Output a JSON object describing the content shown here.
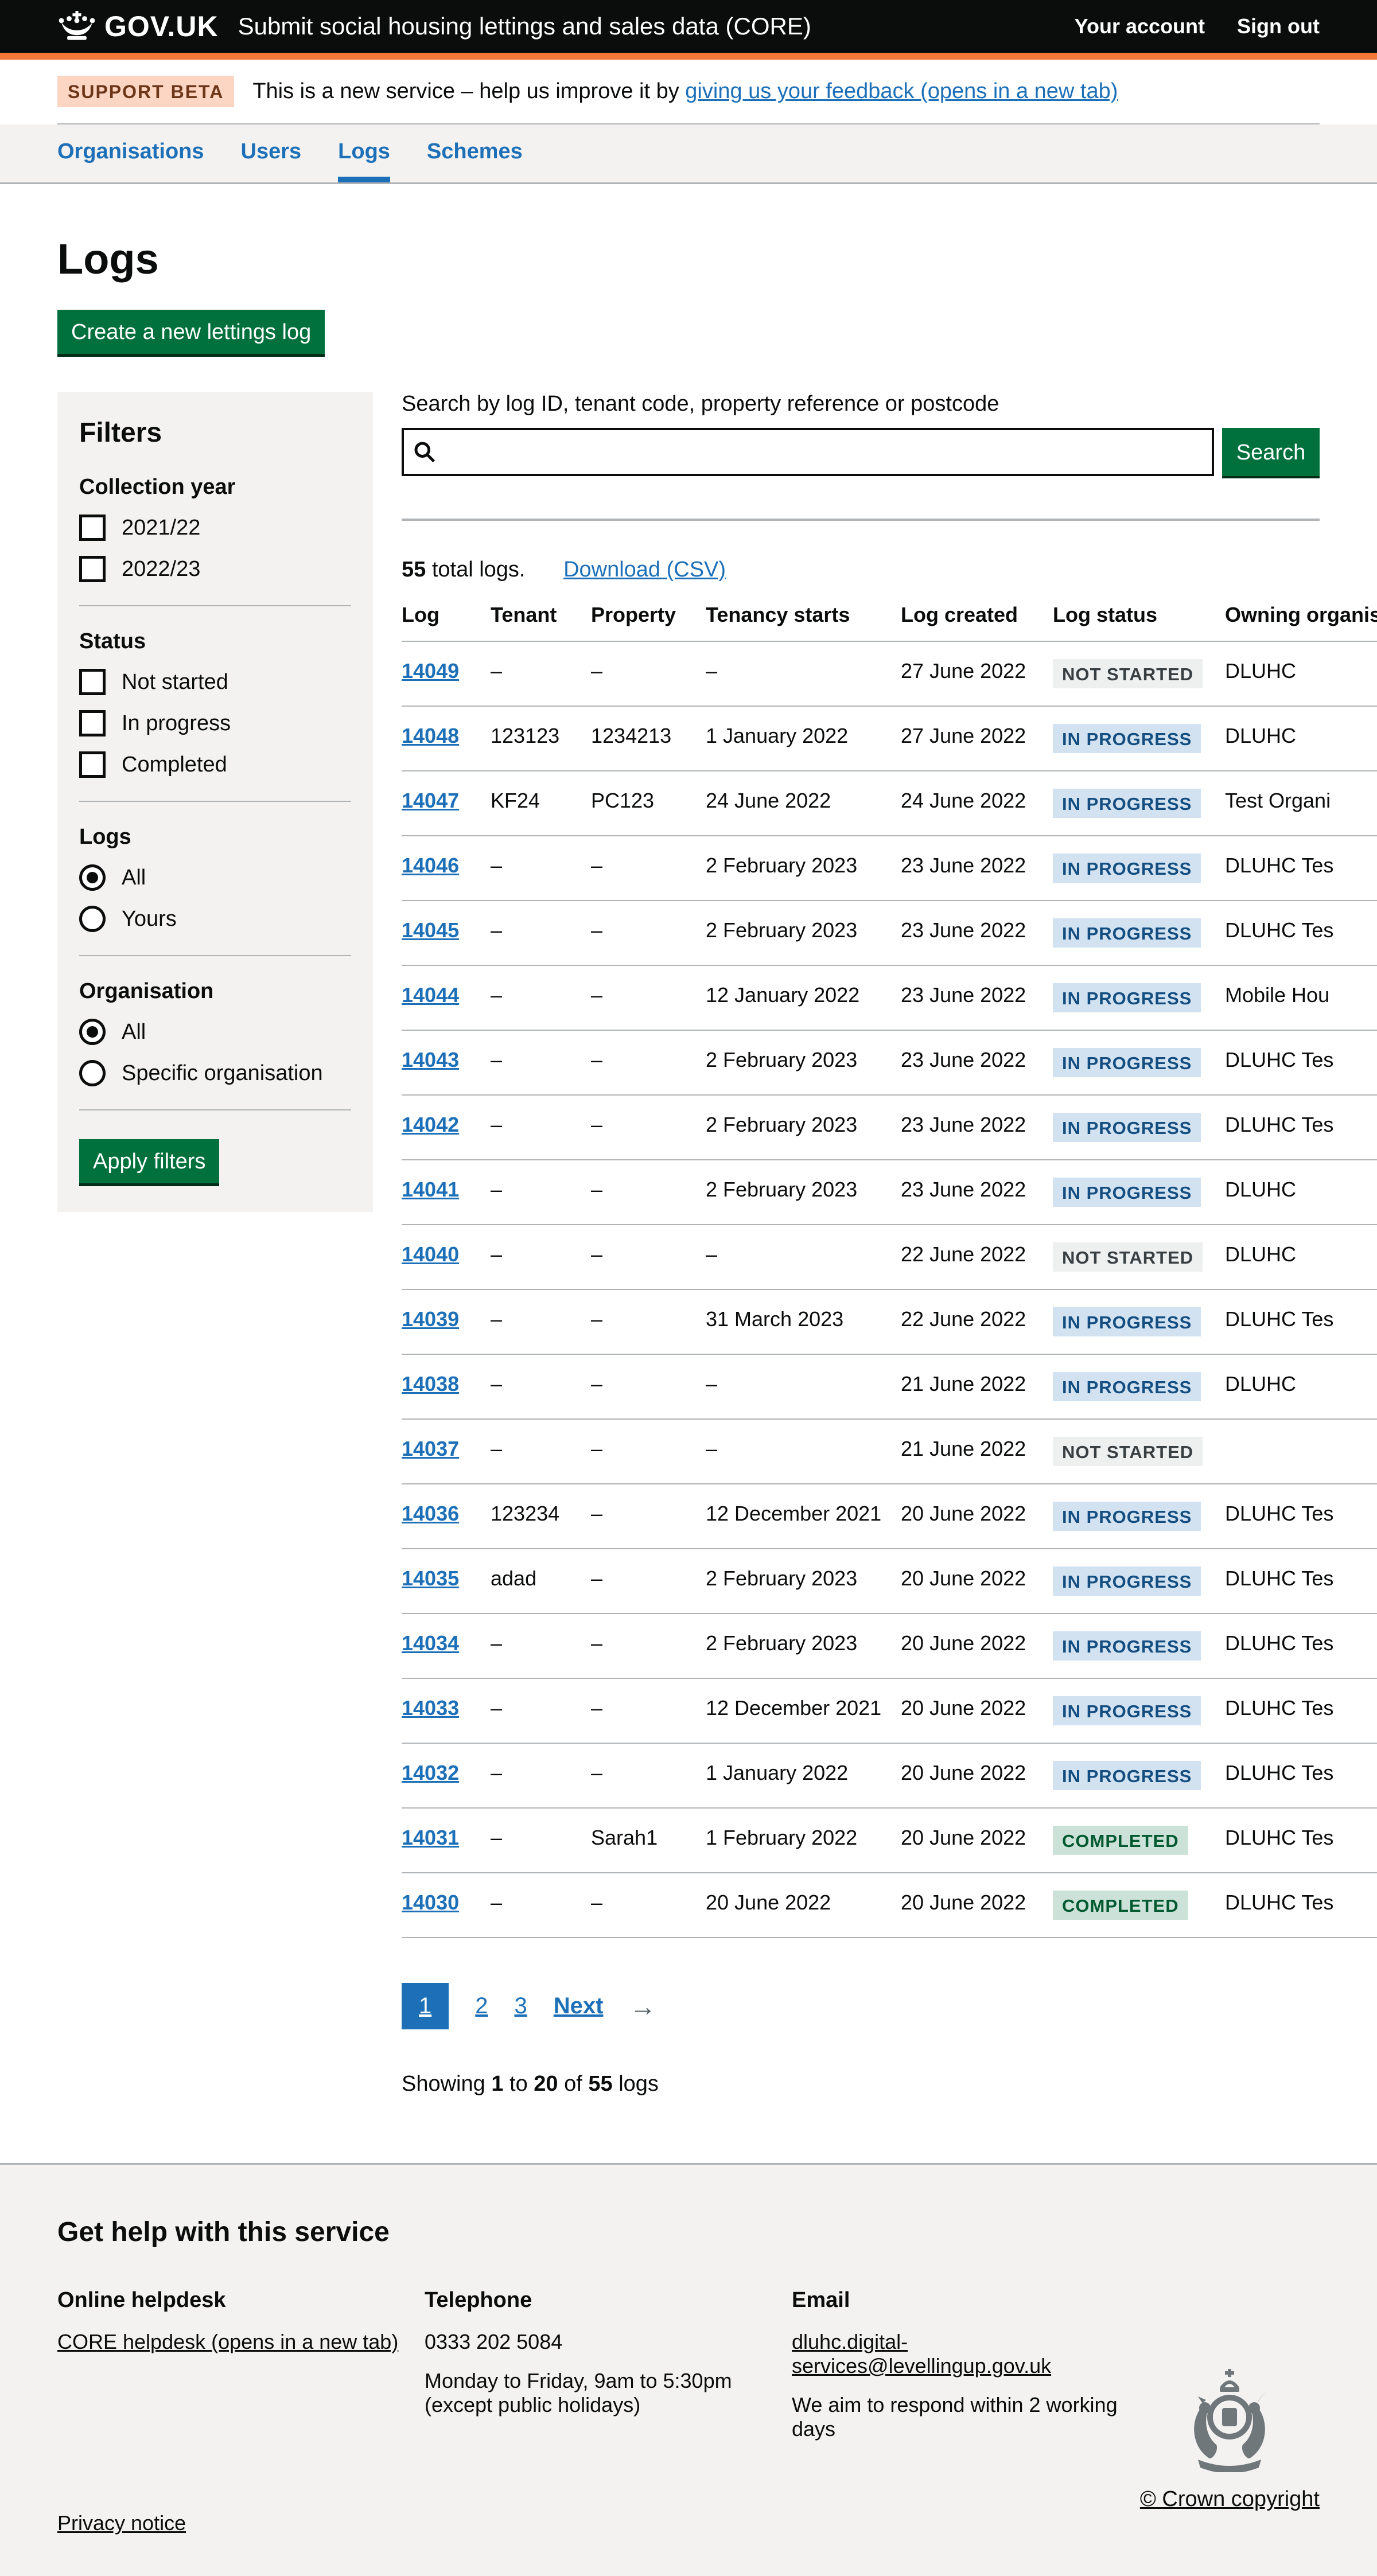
{
  "header": {
    "logo": "GOV.UK",
    "service_name": "Submit social housing lettings and sales data (CORE)",
    "account_link": "Your account",
    "signout_link": "Sign out"
  },
  "beta_banner": {
    "tag": "SUPPORT BETA",
    "text_before": "This is a new service – help us improve it by ",
    "link": "giving us your feedback (opens in a new tab)"
  },
  "nav": {
    "items": [
      {
        "label": "Organisations",
        "active": false
      },
      {
        "label": "Users",
        "active": false
      },
      {
        "label": "Logs",
        "active": true
      },
      {
        "label": "Schemes",
        "active": false
      }
    ]
  },
  "page": {
    "title": "Logs",
    "create_button": "Create a new lettings log"
  },
  "filters": {
    "title": "Filters",
    "collection_year": {
      "legend": "Collection year",
      "options": [
        {
          "label": "2021/22",
          "checked": false
        },
        {
          "label": "2022/23",
          "checked": false
        }
      ]
    },
    "status": {
      "legend": "Status",
      "options": [
        {
          "label": "Not started",
          "checked": false
        },
        {
          "label": "In progress",
          "checked": false
        },
        {
          "label": "Completed",
          "checked": false
        }
      ]
    },
    "logs": {
      "legend": "Logs",
      "options": [
        {
          "label": "All",
          "selected": true
        },
        {
          "label": "Yours",
          "selected": false
        }
      ]
    },
    "organisation": {
      "legend": "Organisation",
      "options": [
        {
          "label": "All",
          "selected": true
        },
        {
          "label": "Specific organisation",
          "selected": false
        }
      ]
    },
    "apply_button": "Apply filters"
  },
  "search": {
    "label": "Search by log ID, tenant code, property reference or postcode",
    "value": "",
    "button": "Search"
  },
  "results": {
    "count": "55",
    "count_suffix": " total logs.",
    "download_link": "Download (CSV)"
  },
  "table": {
    "headers": [
      "Log",
      "Tenant",
      "Property",
      "Tenancy starts",
      "Log created",
      "Log status",
      "Owning organisation"
    ],
    "rows": [
      {
        "id": "14049",
        "tenant": "–",
        "property": "–",
        "tenancy_starts": "–",
        "log_created": "27 June 2022",
        "status": "Not started",
        "status_type": "grey",
        "owning": "DLUHC"
      },
      {
        "id": "14048",
        "tenant": "123123",
        "property": "1234213",
        "tenancy_starts": "1 January 2022",
        "log_created": "27 June 2022",
        "status": "In progress",
        "status_type": "blue",
        "owning": "DLUHC"
      },
      {
        "id": "14047",
        "tenant": "KF24",
        "property": "PC123",
        "tenancy_starts": "24 June 2022",
        "log_created": "24 June 2022",
        "status": "In progress",
        "status_type": "blue",
        "owning": "Test Organi"
      },
      {
        "id": "14046",
        "tenant": "–",
        "property": "–",
        "tenancy_starts": "2 February 2023",
        "log_created": "23 June 2022",
        "status": "In progress",
        "status_type": "blue",
        "owning": "DLUHC Tes"
      },
      {
        "id": "14045",
        "tenant": "–",
        "property": "–",
        "tenancy_starts": "2 February 2023",
        "log_created": "23 June 2022",
        "status": "In progress",
        "status_type": "blue",
        "owning": "DLUHC Tes"
      },
      {
        "id": "14044",
        "tenant": "–",
        "property": "–",
        "tenancy_starts": "12 January 2022",
        "log_created": "23 June 2022",
        "status": "In progress",
        "status_type": "blue",
        "owning": "Mobile Hou"
      },
      {
        "id": "14043",
        "tenant": "–",
        "property": "–",
        "tenancy_starts": "2 February 2023",
        "log_created": "23 June 2022",
        "status": "In progress",
        "status_type": "blue",
        "owning": "DLUHC Tes"
      },
      {
        "id": "14042",
        "tenant": "–",
        "property": "–",
        "tenancy_starts": "2 February 2023",
        "log_created": "23 June 2022",
        "status": "In progress",
        "status_type": "blue",
        "owning": "DLUHC Tes"
      },
      {
        "id": "14041",
        "tenant": "–",
        "property": "–",
        "tenancy_starts": "2 February 2023",
        "log_created": "23 June 2022",
        "status": "In progress",
        "status_type": "blue",
        "owning": "DLUHC"
      },
      {
        "id": "14040",
        "tenant": "–",
        "property": "–",
        "tenancy_starts": "–",
        "log_created": "22 June 2022",
        "status": "Not started",
        "status_type": "grey",
        "owning": "DLUHC"
      },
      {
        "id": "14039",
        "tenant": "–",
        "property": "–",
        "tenancy_starts": "31 March 2023",
        "log_created": "22 June 2022",
        "status": "In progress",
        "status_type": "blue",
        "owning": "DLUHC Tes"
      },
      {
        "id": "14038",
        "tenant": "–",
        "property": "–",
        "tenancy_starts": "–",
        "log_created": "21 June 2022",
        "status": "In progress",
        "status_type": "blue",
        "owning": "DLUHC"
      },
      {
        "id": "14037",
        "tenant": "–",
        "property": "–",
        "tenancy_starts": "–",
        "log_created": "21 June 2022",
        "status": "Not started",
        "status_type": "grey",
        "owning": ""
      },
      {
        "id": "14036",
        "tenant": "123234",
        "property": "–",
        "tenancy_starts": "12 December 2021",
        "log_created": "20 June 2022",
        "status": "In progress",
        "status_type": "blue",
        "owning": "DLUHC Tes"
      },
      {
        "id": "14035",
        "tenant": "adad",
        "property": "–",
        "tenancy_starts": "2 February 2023",
        "log_created": "20 June 2022",
        "status": "In progress",
        "status_type": "blue",
        "owning": "DLUHC Tes"
      },
      {
        "id": "14034",
        "tenant": "–",
        "property": "–",
        "tenancy_starts": "2 February 2023",
        "log_created": "20 June 2022",
        "status": "In progress",
        "status_type": "blue",
        "owning": "DLUHC Tes"
      },
      {
        "id": "14033",
        "tenant": "–",
        "property": "–",
        "tenancy_starts": "12 December 2021",
        "log_created": "20 June 2022",
        "status": "In progress",
        "status_type": "blue",
        "owning": "DLUHC Tes"
      },
      {
        "id": "14032",
        "tenant": "–",
        "property": "–",
        "tenancy_starts": "1 January 2022",
        "log_created": "20 June 2022",
        "status": "In progress",
        "status_type": "blue",
        "owning": "DLUHC Tes"
      },
      {
        "id": "14031",
        "tenant": "–",
        "property": "Sarah1",
        "tenancy_starts": "1 February 2022",
        "log_created": "20 June 2022",
        "status": "Completed",
        "status_type": "green",
        "owning": "DLUHC Tes"
      },
      {
        "id": "14030",
        "tenant": "–",
        "property": "–",
        "tenancy_starts": "20 June 2022",
        "log_created": "20 June 2022",
        "status": "Completed",
        "status_type": "green",
        "owning": "DLUHC Tes"
      }
    ]
  },
  "pagination": {
    "current": "1",
    "page2": "2",
    "page3": "3",
    "next": "Next",
    "arrow": "→"
  },
  "showing": {
    "prefix": "Showing ",
    "from": "1",
    "mid1": " to ",
    "to": "20",
    "mid2": " of ",
    "of": "55",
    "suffix": " logs"
  },
  "footer": {
    "heading": "Get help with this service",
    "online_helpdesk": {
      "heading": "Online helpdesk",
      "link": "CORE helpdesk (opens in a new tab)"
    },
    "telephone": {
      "heading": "Telephone",
      "number": "0333 202 5084",
      "hours": "Monday to Friday, 9am to 5:30pm",
      "note": "(except public holidays)"
    },
    "email": {
      "heading": "Email",
      "link": "dluhc.digital-services@levellingup.gov.uk",
      "note": "We aim to respond within 2 working days"
    },
    "privacy_link": "Privacy notice",
    "copyright": "© Crown copyright"
  },
  "colors": {
    "header_bg": "#0b0c0c",
    "header_accent": "#f47738",
    "link_blue": "#1d70b8",
    "button_green": "#00703c",
    "panel_grey": "#f3f2f1",
    "border_grey": "#b1b4b6",
    "beta_tag_bg": "#fcd6c3",
    "beta_tag_text": "#6e3619",
    "tag_grey_bg": "#eeefef",
    "tag_grey_text": "#383f43",
    "tag_blue_bg": "#d2e2f1",
    "tag_blue_text": "#144e81",
    "tag_green_bg": "#cce2d8",
    "tag_green_text": "#005a30"
  }
}
